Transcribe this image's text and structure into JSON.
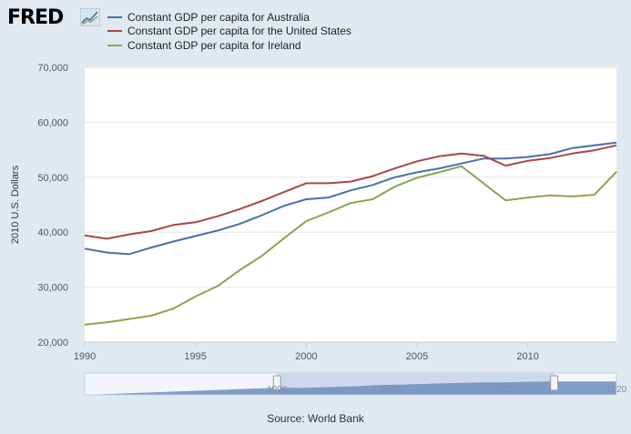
{
  "header": {
    "logo_text": "FRED"
  },
  "colors": {
    "background": "#e1e9f0",
    "plot_bg": "#ffffff",
    "australia": "#4572a7",
    "us": "#aa4643",
    "ireland": "#89a54e",
    "navigator_fill": "#6d8ebf",
    "navigator_selection": "#c5d1e6"
  },
  "chart_data": {
    "type": "line",
    "title": "",
    "xlabel": "",
    "ylabel": "2010 U.S. Dollars",
    "xlim": [
      1990,
      2014
    ],
    "ylim": [
      20000,
      70000
    ],
    "x_ticks": [
      1990,
      1995,
      2000,
      2005,
      2010
    ],
    "y_ticks": [
      20000,
      30000,
      40000,
      50000,
      60000,
      70000
    ],
    "x_tick_labels": [
      "1990",
      "1995",
      "2000",
      "2005",
      "2010"
    ],
    "y_tick_labels": [
      "20,000",
      "30,000",
      "40,000",
      "50,000",
      "60,000",
      "70,000"
    ],
    "legend_position": "top-left",
    "grid": true,
    "x": [
      1990,
      1991,
      1992,
      1993,
      1994,
      1995,
      1996,
      1997,
      1998,
      1999,
      2000,
      2001,
      2002,
      2003,
      2004,
      2005,
      2006,
      2007,
      2008,
      2009,
      2010,
      2011,
      2012,
      2013,
      2014
    ],
    "series": [
      {
        "name": "Constant GDP per capita for Australia",
        "color": "#4572a7",
        "values": [
          37000,
          36300,
          36000,
          37200,
          38300,
          39300,
          40300,
          41500,
          43100,
          44800,
          46000,
          46300,
          47600,
          48600,
          50000,
          50900,
          51600,
          52500,
          53400,
          53400,
          53700,
          54200,
          55300,
          55800,
          56300
        ]
      },
      {
        "name": "Constant GDP per capita for the United States",
        "color": "#aa4643",
        "values": [
          39400,
          38800,
          39600,
          40200,
          41300,
          41800,
          42900,
          44200,
          45700,
          47300,
          48900,
          48900,
          49200,
          50200,
          51600,
          52900,
          53800,
          54300,
          53900,
          52100,
          53000,
          53500,
          54300,
          54900,
          55800
        ]
      },
      {
        "name": "Constant GDP per capita for Ireland",
        "color": "#89a54e",
        "values": [
          23200,
          23600,
          24200,
          24800,
          26100,
          28300,
          30200,
          33100,
          35700,
          38900,
          42000,
          43600,
          45300,
          46000,
          48300,
          49900,
          50900,
          52000,
          48900,
          45800,
          46300,
          46700,
          46500,
          46800,
          51000
        ]
      }
    ],
    "navigator": {
      "x_tick_labels": [
        "1990",
        "2000",
        "2010",
        "2020"
      ],
      "selected_range": [
        1990,
        2014
      ]
    }
  },
  "footer": {
    "source": "Source: World Bank"
  }
}
